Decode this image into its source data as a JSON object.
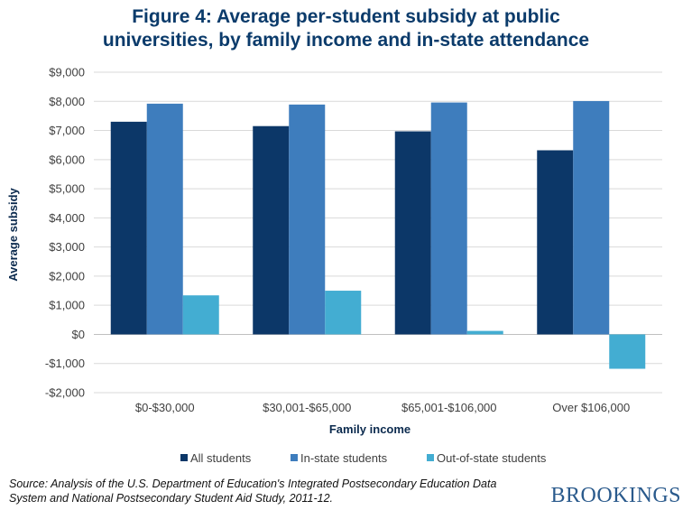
{
  "title_lines": [
    "Figure 4: Average per-student subsidy at public",
    "universities, by family income and in-state attendance"
  ],
  "source": {
    "line1": "Source: Analysis of the U.S. Department of Education's Integrated Postsecondary Education Data",
    "line2": "System and National Postsecondary Student Aid Study, 2011-12."
  },
  "brand": "BROOKINGS",
  "chart_data": {
    "type": "bar",
    "title": "Figure 4: Average per-student subsidy at public universities, by family income and in-state attendance",
    "xlabel": "Family income",
    "ylabel": "Average subsidy",
    "categories": [
      "$0-$30,000",
      "$30,001-$65,000",
      "$65,001-$106,000",
      "Over $106,000"
    ],
    "series": [
      {
        "name": "All students",
        "color": "#0c3768",
        "values": [
          7300,
          7150,
          6970,
          6320
        ]
      },
      {
        "name": "In-state students",
        "color": "#3e7dbd",
        "values": [
          7920,
          7890,
          7960,
          8010
        ]
      },
      {
        "name": "Out-of-state students",
        "color": "#43add2",
        "values": [
          1340,
          1500,
          120,
          -1180
        ]
      }
    ],
    "ylim": [
      -2000,
      9000
    ],
    "yticks": [
      -2000,
      -1000,
      0,
      1000,
      2000,
      3000,
      4000,
      5000,
      6000,
      7000,
      8000,
      9000
    ],
    "ytick_labels": [
      "-$2,000",
      "-$1,000",
      "$0",
      "$1,000",
      "$2,000",
      "$3,000",
      "$4,000",
      "$5,000",
      "$6,000",
      "$7,000",
      "$8,000",
      "$9,000"
    ],
    "grid": true,
    "legend_position": "bottom"
  }
}
